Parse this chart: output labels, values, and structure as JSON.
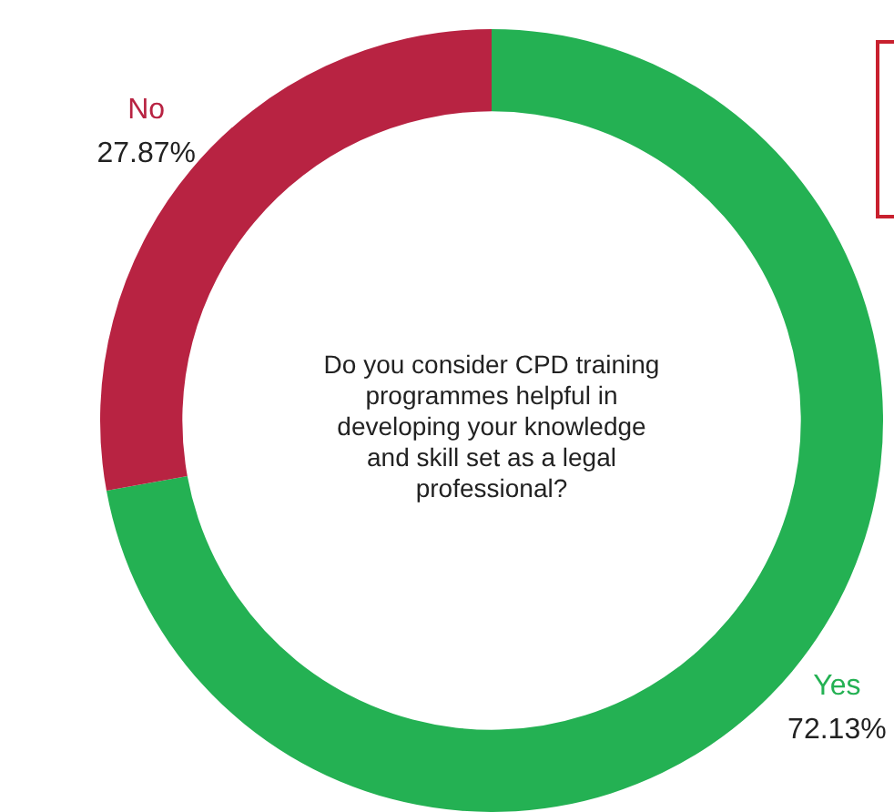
{
  "chart_data": {
    "type": "donut",
    "categories": [
      "Yes",
      "No"
    ],
    "values": [
      72.13,
      27.87
    ],
    "value_labels": [
      "72.13%",
      "27.87%"
    ],
    "colors": [
      "#24b153",
      "#b82342"
    ],
    "annotations": [
      "Do you consider CPD training programmes helpful in developing your knowledge and skill set as a legal professional?"
    ]
  }
}
